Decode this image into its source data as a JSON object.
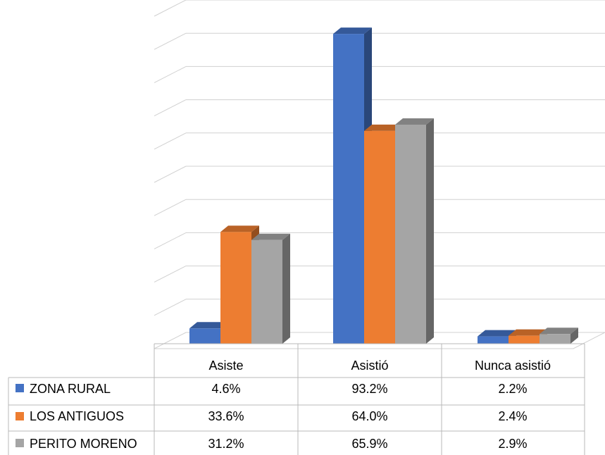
{
  "chart_data": {
    "type": "bar",
    "categories": [
      "Asiste",
      "Asistió",
      "Nunca asistió"
    ],
    "series": [
      {
        "name": "ZONA RURAL",
        "values": [
          4.6,
          93.2,
          2.2
        ],
        "labels": [
          "4.6%",
          "93.2%",
          "2.2%"
        ],
        "color": "#4472C4",
        "legend_icon": "blue-square"
      },
      {
        "name": "LOS ANTIGUOS",
        "values": [
          33.6,
          64.0,
          2.4
        ],
        "labels": [
          "33.6%",
          "64.0%",
          "2.4%"
        ],
        "color": "#ED7D31",
        "legend_icon": "orange-square"
      },
      {
        "name": "PERITO MORENO",
        "values": [
          31.2,
          65.9,
          2.9
        ],
        "labels": [
          "31.2%",
          "65.9%",
          "2.9%"
        ],
        "color": "#A5A5A5",
        "legend_icon": "gray-square"
      }
    ],
    "ylim": [
      0,
      100
    ],
    "grid": true,
    "style": "3d-clustered-column",
    "data_table": true
  }
}
